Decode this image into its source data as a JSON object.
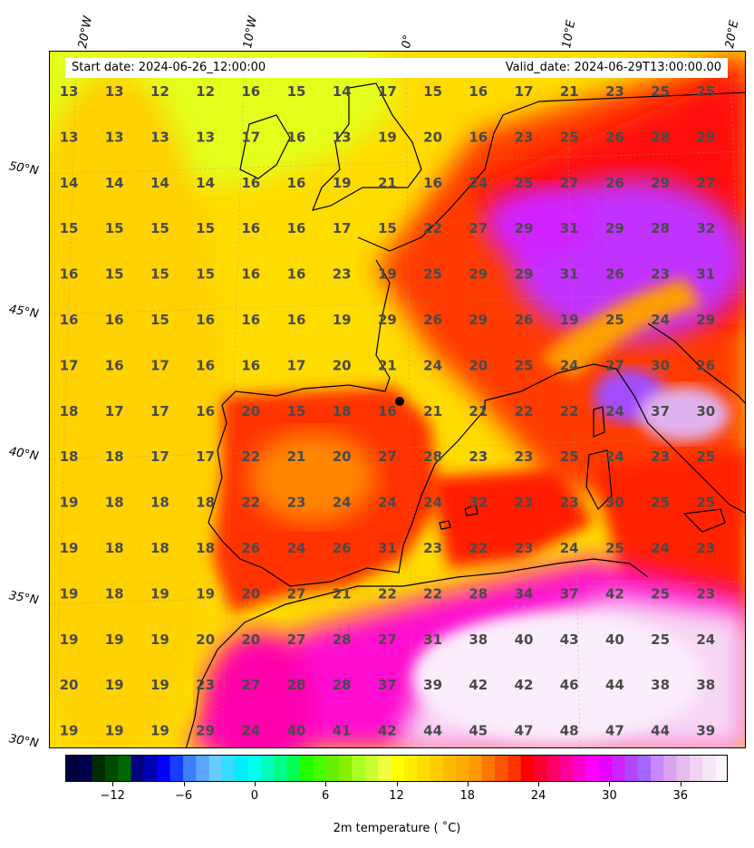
{
  "header": {
    "start_date": "Start date: 2024-06-26_12:00:00",
    "valid_date": "Valid_date: 2024-06-29T13:00:00.00"
  },
  "axes": {
    "lat_labels": [
      "50°N",
      "45°N",
      "40°N",
      "35°N",
      "30°N"
    ],
    "lon_labels": [
      "20°W",
      "10°W",
      "0°",
      "10°E",
      "20°E"
    ]
  },
  "grid_values": [
    [
      13,
      13,
      12,
      12,
      16,
      15,
      14,
      17,
      15,
      16,
      17,
      21,
      23,
      25,
      25
    ],
    [
      13,
      13,
      13,
      13,
      17,
      16,
      13,
      19,
      20,
      16,
      23,
      25,
      26,
      28,
      29
    ],
    [
      14,
      14,
      14,
      14,
      16,
      16,
      19,
      21,
      16,
      24,
      25,
      27,
      26,
      29,
      27
    ],
    [
      15,
      15,
      15,
      15,
      16,
      16,
      17,
      15,
      22,
      27,
      29,
      31,
      29,
      28,
      32
    ],
    [
      16,
      15,
      15,
      15,
      16,
      16,
      23,
      19,
      25,
      29,
      29,
      31,
      26,
      23,
      31
    ],
    [
      16,
      16,
      15,
      16,
      16,
      16,
      19,
      29,
      26,
      29,
      26,
      19,
      25,
      24,
      29
    ],
    [
      17,
      16,
      17,
      16,
      16,
      17,
      20,
      21,
      24,
      20,
      25,
      24,
      27,
      30,
      26
    ],
    [
      18,
      17,
      17,
      16,
      20,
      15,
      18,
      16,
      21,
      21,
      22,
      22,
      24,
      37,
      30
    ],
    [
      18,
      18,
      17,
      17,
      22,
      21,
      20,
      27,
      28,
      23,
      23,
      25,
      24,
      23,
      25
    ],
    [
      19,
      18,
      18,
      18,
      22,
      23,
      24,
      24,
      24,
      32,
      23,
      23,
      30,
      25,
      25
    ],
    [
      19,
      18,
      18,
      18,
      26,
      24,
      26,
      31,
      23,
      22,
      23,
      24,
      25,
      24,
      23
    ],
    [
      19,
      18,
      19,
      19,
      20,
      27,
      21,
      22,
      22,
      28,
      34,
      37,
      42,
      25,
      23
    ],
    [
      19,
      19,
      19,
      20,
      20,
      27,
      28,
      27,
      31,
      38,
      40,
      43,
      40,
      25,
      24
    ],
    [
      20,
      19,
      19,
      23,
      27,
      28,
      28,
      37,
      39,
      42,
      42,
      46,
      44,
      38,
      38
    ],
    [
      19,
      19,
      19,
      29,
      24,
      40,
      41,
      42,
      44,
      45,
      47,
      48,
      47,
      44,
      39
    ]
  ],
  "colorbar": {
    "label": "2m temperature ($^\\circ$C)",
    "label_display": "2m temperature ( ˚C)",
    "min": -16,
    "max": 40,
    "ticks": [
      "−12",
      "−6",
      "0",
      "6",
      "12",
      "18",
      "24",
      "30",
      "36"
    ],
    "tick_values": [
      -12,
      -6,
      0,
      6,
      12,
      18,
      24,
      30,
      36
    ],
    "colors": [
      "#000040",
      "#00004d",
      "#002e00",
      "#004a00",
      "#006600",
      "#000080",
      "#0000b3",
      "#0000ff",
      "#1a3cff",
      "#3d7fff",
      "#59a6ff",
      "#66ccff",
      "#33ddff",
      "#00eeff",
      "#00ffee",
      "#00ffbb",
      "#00ff88",
      "#00ff55",
      "#22ff00",
      "#44ff00",
      "#66ee00",
      "#88ee00",
      "#aaff22",
      "#ccff33",
      "#eeff44",
      "#ffff00",
      "#ffee00",
      "#ffdd00",
      "#ffcc00",
      "#ffbb00",
      "#ffaa00",
      "#ff9900",
      "#ff7700",
      "#ff5500",
      "#ff3300",
      "#ff0000",
      "#ff0033",
      "#ff0066",
      "#ff0099",
      "#ff00cc",
      "#ff00ff",
      "#e600ff",
      "#cc22ff",
      "#b344ff",
      "#a366ff",
      "#c988ff",
      "#d9a3f0",
      "#e6bbee",
      "#efd3f2",
      "#f6e6f7",
      "#fcf5fc"
    ]
  },
  "colors": {
    "value_text": "#4a4a4a",
    "coast": "#000000"
  }
}
